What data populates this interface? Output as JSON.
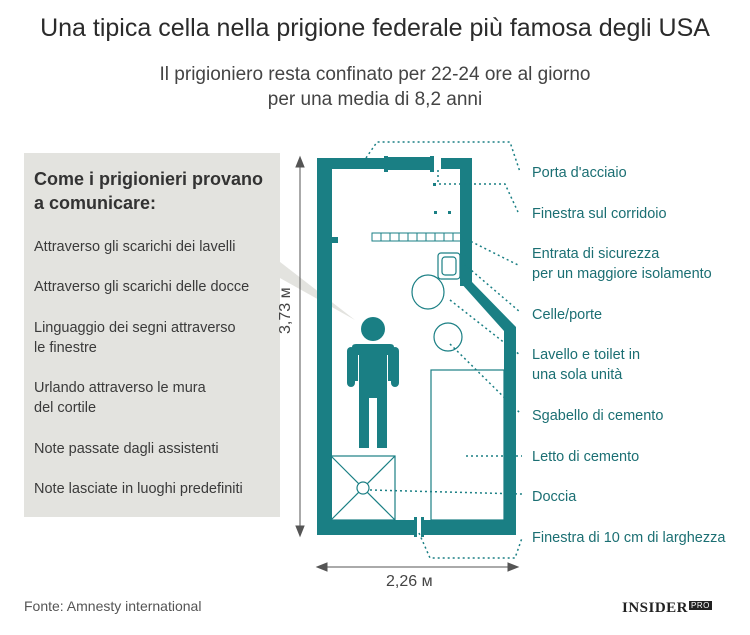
{
  "title": "Una tipica cella nella prigione federale più famosa degli USA",
  "subtitle_line1": "Il prigioniero resta confinato per 22-24 ore al giorno",
  "subtitle_line2": "per una media di 8,2 anni",
  "panel": {
    "heading_line1": "Come i prigionieri provano",
    "heading_line2": "a comunicare:",
    "items": [
      "Attraverso gli scarichi dei lavelli",
      "Attraverso gli scarichi delle docce",
      "Linguaggio dei segni attraverso",
      "le finestre",
      "Urlando attraverso le mura",
      "del cortile",
      "Note passate dagli assistenti",
      "Note lasciate in luoghi predefiniti"
    ]
  },
  "labels": {
    "steel_door": "Porta d'acciaio",
    "corridor_window": "Finestra sul corridoio",
    "security_entry_1": "Entrata di sicurezza",
    "security_entry_2": "per un maggiore isolamento",
    "cells_doors": "Celle/porte",
    "sink_toilet_1": "Lavello e toilet in",
    "sink_toilet_2": "una sola unità",
    "stool": "Sgabello di cemento",
    "bed": "Letto di cemento",
    "shower": "Doccia",
    "window": "Finestra di 10 cm di larghezza"
  },
  "dimensions": {
    "height": "3,73 м",
    "width": "2,26 м"
  },
  "source": "Fonte: Amnesty international",
  "logo": "INSIDER",
  "logo_badge": "PRO",
  "colors": {
    "wall": "#1a7f84",
    "label": "#1b6f73",
    "panel": "#e3e3df"
  }
}
